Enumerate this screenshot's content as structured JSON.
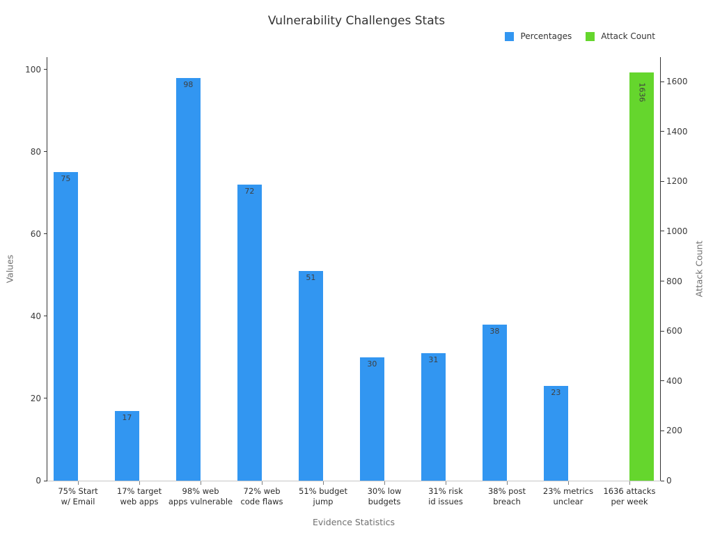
{
  "chart_data": {
    "type": "bar",
    "title": "Vulnerability Challenges Stats",
    "xlabel": "Evidence Statistics",
    "background": "#ffffff",
    "grid": false,
    "legend_position": "top-right",
    "categories": [
      "75% Start\nw/ Email",
      "17% target\nweb apps",
      "98% web\napps vulnerable",
      "72% web\ncode flaws",
      "51% budget\njump",
      "30% low\nbudgets",
      "31% risk\nid issues",
      "38% post\nbreach",
      "23% metrics\nunclear",
      "1636 attacks\nper week"
    ],
    "series": [
      {
        "name": "Percentages",
        "axis": "left",
        "color": "#3296f1",
        "label_rotation": 0,
        "values": [
          75,
          17,
          98,
          72,
          51,
          30,
          31,
          38,
          23,
          null
        ]
      },
      {
        "name": "Attack Count",
        "axis": "right",
        "color": "#65d62d",
        "label_rotation": 90,
        "values": [
          null,
          null,
          null,
          null,
          null,
          null,
          null,
          null,
          null,
          1636
        ]
      }
    ],
    "axes": {
      "left": {
        "label": "Values",
        "ticks": [
          0,
          20,
          40,
          60,
          80,
          100
        ],
        "range": [
          0,
          103
        ]
      },
      "right": {
        "label": "Attack Count",
        "ticks": [
          0,
          200,
          400,
          600,
          800,
          1000,
          1200,
          1400,
          1600
        ],
        "range": [
          0,
          1698
        ]
      }
    }
  }
}
